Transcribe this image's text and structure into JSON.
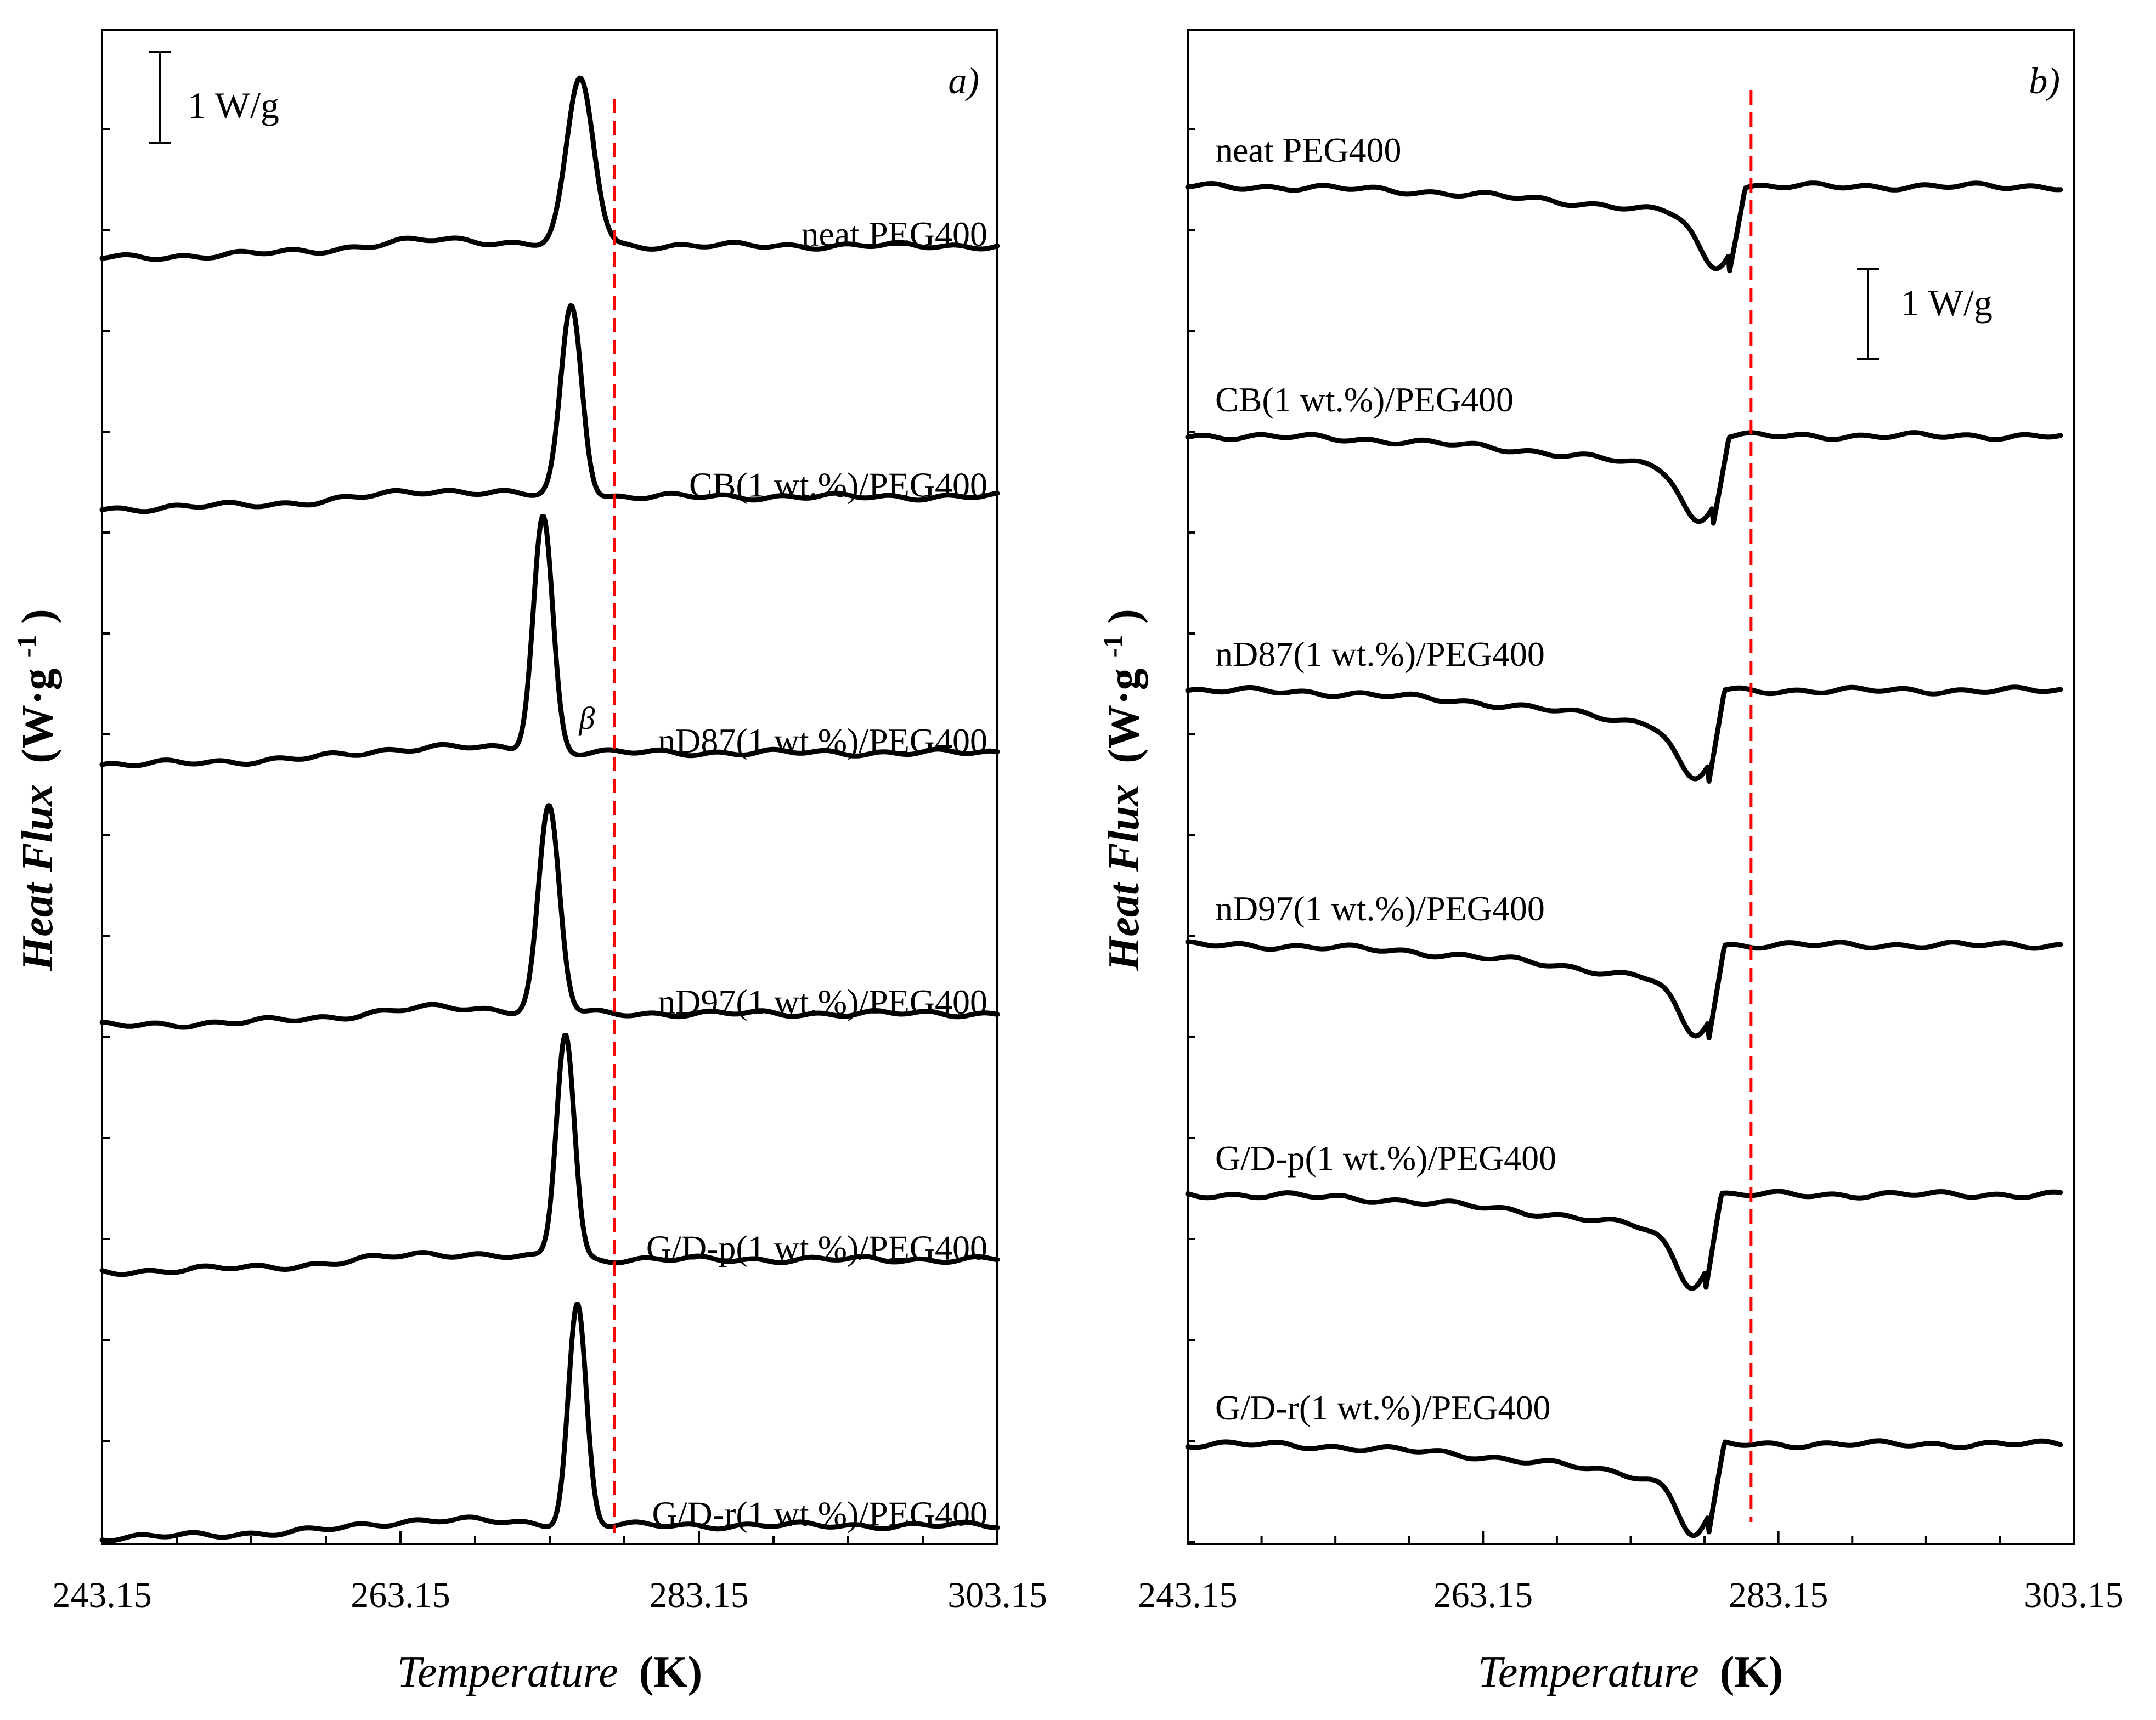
{
  "chart_data": [
    {
      "panel": "a)",
      "type": "line",
      "title": "",
      "xlabel": {
        "italic": "Temperature",
        "unit": "(K)"
      },
      "ylabel": {
        "italic": "Heat Flux",
        "unit": "(W·g",
        "sup": "-1",
        "close": ")"
      },
      "xlim": [
        243.15,
        303.15
      ],
      "xticks": [
        "243.15",
        "263.15",
        "283.15",
        "303.15"
      ],
      "scale_bar_label": "1 W/g",
      "reference_line_T": 277.5,
      "reference_line_color": "#ff0000",
      "curve_color": "#000000",
      "annotation": {
        "text": "β",
        "T": 277.5,
        "series": "nD87(1 wt.%)/PEG400"
      },
      "series": [
        {
          "name": "neat PEG400",
          "baseline_W_g": 0.0,
          "drift_W_g": 0.0,
          "event": "exothermic peak",
          "peak_T": 275.2,
          "peak_height_W_g": 1.65,
          "peak_width_K": 0.9
        },
        {
          "name": "CB(1 wt.%)/PEG400",
          "baseline_W_g": -2.5,
          "drift_W_g": 0.0,
          "event": "exothermic peak",
          "peak_T": 274.6,
          "peak_height_W_g": 1.9,
          "peak_width_K": 0.7
        },
        {
          "name": "nD87(1 wt.%)/PEG400",
          "baseline_W_g": -5.05,
          "drift_W_g": 0.0,
          "event": "exothermic peak",
          "peak_T": 272.7,
          "peak_height_W_g": 2.35,
          "peak_width_K": 0.65
        },
        {
          "name": "nD97(1 wt.%)/PEG400",
          "baseline_W_g": -7.65,
          "drift_W_g": 0.0,
          "event": "exothermic peak",
          "peak_T": 273.1,
          "peak_height_W_g": 2.05,
          "peak_width_K": 0.7
        },
        {
          "name": "G/D-p(1 wt.%)/PEG400",
          "baseline_W_g": -10.1,
          "drift_W_g": 0.0,
          "event": "exothermic peak",
          "peak_T": 274.2,
          "peak_height_W_g": 2.25,
          "peak_width_K": 0.6
        },
        {
          "name": "G/D-r(1 wt.%)/PEG400",
          "baseline_W_g": -12.75,
          "drift_W_g": 0.0,
          "event": "exothermic peak",
          "peak_T": 275.0,
          "peak_height_W_g": 2.2,
          "peak_width_K": 0.6
        }
      ]
    },
    {
      "panel": "b)",
      "type": "line",
      "title": "",
      "xlabel": {
        "italic": "Temperature",
        "unit": "(K)"
      },
      "ylabel": {
        "italic": "Heat Flux",
        "unit": "(W·g",
        "sup": "-1",
        "close": ")"
      },
      "xlim": [
        243.15,
        303.15
      ],
      "xticks": [
        "243.15",
        "263.15",
        "283.15",
        "303.15"
      ],
      "scale_bar_label": "1 W/g",
      "reference_line_T": 281.3,
      "reference_line_color": "#ff0000",
      "curve_color": "#000000",
      "series": [
        {
          "name": "neat PEG400",
          "baseline_W_g": 0.0,
          "drift_W_g": -0.35,
          "event": "endothermic step",
          "step_T": 280.4,
          "dip_W_g": 0.5,
          "end_T": 302.3
        },
        {
          "name": "CB(1 wt.%)/PEG400",
          "baseline_W_g": -2.5,
          "drift_W_g": -0.4,
          "event": "endothermic step",
          "step_T": 279.3,
          "dip_W_g": 0.5,
          "end_T": 302.3
        },
        {
          "name": "nD87(1 wt.%)/PEG400",
          "baseline_W_g": -5.05,
          "drift_W_g": -0.45,
          "event": "endothermic step",
          "step_T": 279.0,
          "dip_W_g": 0.5,
          "end_T": 302.3
        },
        {
          "name": "nD97(1 wt.%)/PEG400",
          "baseline_W_g": -7.6,
          "drift_W_g": -0.45,
          "event": "endothermic step",
          "step_T": 279.0,
          "dip_W_g": 0.5,
          "end_T": 302.3
        },
        {
          "name": "G/D-p(1 wt.%)/PEG400",
          "baseline_W_g": -10.1,
          "drift_W_g": -0.45,
          "event": "endothermic step",
          "step_T": 278.8,
          "dip_W_g": 0.5,
          "end_T": 302.3
        },
        {
          "name": "G/D-r(1 wt.%)/PEG400",
          "baseline_W_g": -12.6,
          "drift_W_g": -0.45,
          "event": "endothermic step",
          "step_T": 279.0,
          "dip_W_g": 0.5,
          "end_T": 302.3
        }
      ]
    }
  ]
}
